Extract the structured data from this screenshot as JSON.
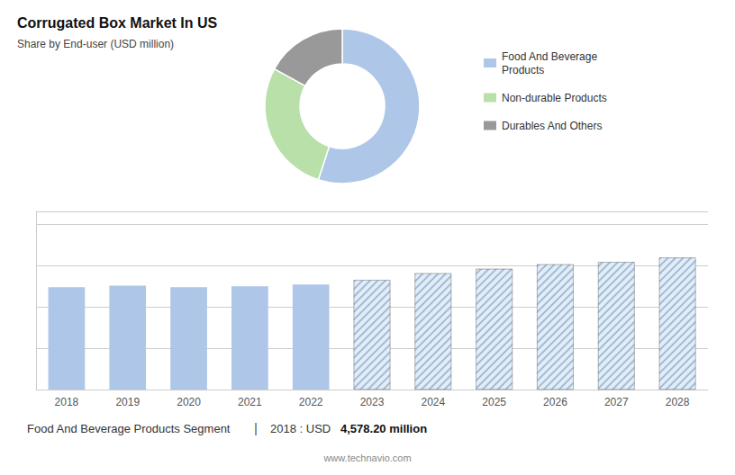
{
  "chart_data": [
    {
      "type": "pie",
      "title": "Corrugated Box Market In US",
      "subtitle": "Share by End-user (USD million)",
      "categories": [
        "Food And Beverage\nProducts",
        "Non-durable Products",
        "Durables And Others"
      ],
      "values": [
        55,
        28,
        17
      ],
      "colors": [
        "#aec6e8",
        "#b8e0a8",
        "#999999"
      ],
      "legend": "right"
    },
    {
      "type": "bar",
      "categories": [
        "2018",
        "2019",
        "2020",
        "2021",
        "2022",
        "2023",
        "2024",
        "2025",
        "2026",
        "2027",
        "2028"
      ],
      "series": [
        {
          "color": "#aec6e8",
          "values": [
            4578.2,
            4650,
            4580,
            4620,
            4700,
            null,
            null,
            null,
            null,
            null,
            null
          ]
        },
        {
          "color": "#ddeeff",
          "values": [
            null,
            null,
            null,
            null,
            null,
            4900,
            5200,
            5400,
            5600,
            5700,
            5900
          ]
        }
      ],
      "ylim": [
        0,
        7965
      ],
      "yticks": [
        0,
        1843.75,
        3687.5,
        5531.25,
        7375
      ],
      "grid": true,
      "tick_labels": "x",
      "annotations": [
        "Food And Beverage Products Segment",
        "|",
        "2018 : USD",
        "4,578.20 million",
        "www.technavio.com"
      ]
    }
  ]
}
